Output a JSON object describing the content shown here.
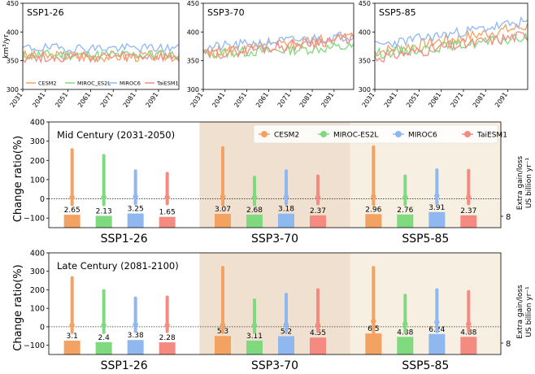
{
  "colors": {
    "CESM2": "#f4a261",
    "MIROC_ES2L": "#7fd97f",
    "MIROC6": "#8fb8f0",
    "TaiESM1": "#f58a80",
    "band_ssp370": "#f0e0cf",
    "band_ssp585": "#f7efe2"
  },
  "chart_data": [
    {
      "type": "line",
      "title": "SSP1-26",
      "ylabel": "km³/yr",
      "ylim": [
        300,
        450
      ],
      "yticks": [
        "300",
        "350",
        "400",
        "450"
      ],
      "xticks": [
        "2031",
        "2041",
        "2051",
        "2061",
        "2071",
        "2081",
        "2091"
      ],
      "xlim": [
        2031,
        2100
      ],
      "legend": "bottom",
      "series": [
        {
          "name": "CESM2",
          "color_key": "CESM2",
          "base": 358,
          "trend": 0,
          "amp": 10,
          "seed": 3
        },
        {
          "name": "MIROC_ES2L",
          "color_key": "MIROC_ES2L",
          "base": 360,
          "trend": 0,
          "amp": 9,
          "seed": 11
        },
        {
          "name": "MIROC6",
          "color_key": "MIROC6",
          "base": 372,
          "trend": 0,
          "amp": 8,
          "seed": 19
        },
        {
          "name": "TaiESM1",
          "color_key": "TaiESM1",
          "base": 356,
          "trend": 0,
          "amp": 9,
          "seed": 27
        }
      ]
    },
    {
      "type": "line",
      "title": "SSP3-70",
      "ylim": [
        300,
        450
      ],
      "yticks": [
        "300",
        "350",
        "400",
        "450"
      ],
      "xticks": [
        "2031",
        "2041",
        "2051",
        "2061",
        "2071",
        "2081",
        "2091"
      ],
      "xlim": [
        2031,
        2100
      ],
      "series": [
        {
          "name": "CESM2",
          "color_key": "CESM2",
          "base": 362,
          "trend": 30,
          "amp": 10,
          "seed": 5
        },
        {
          "name": "MIROC_ES2L",
          "color_key": "MIROC_ES2L",
          "base": 362,
          "trend": 12,
          "amp": 9,
          "seed": 13
        },
        {
          "name": "MIROC6",
          "color_key": "MIROC6",
          "base": 372,
          "trend": 22,
          "amp": 9,
          "seed": 21
        },
        {
          "name": "TaiESM1",
          "color_key": "TaiESM1",
          "base": 360,
          "trend": 30,
          "amp": 10,
          "seed": 29
        }
      ]
    },
    {
      "type": "line",
      "title": "SSP5-85",
      "ylim": [
        300,
        450
      ],
      "yticks": [
        "300",
        "350",
        "400",
        "450"
      ],
      "xticks": [
        "2031",
        "2041",
        "2051",
        "2061",
        "2071",
        "2081",
        "2091"
      ],
      "xlim": [
        2031,
        2100
      ],
      "series": [
        {
          "name": "CESM2",
          "color_key": "CESM2",
          "base": 365,
          "trend": 45,
          "amp": 10,
          "seed": 7
        },
        {
          "name": "MIROC_ES2L",
          "color_key": "MIROC_ES2L",
          "base": 362,
          "trend": 28,
          "amp": 9,
          "seed": 15
        },
        {
          "name": "MIROC6",
          "color_key": "MIROC6",
          "base": 376,
          "trend": 42,
          "amp": 9,
          "seed": 23
        },
        {
          "name": "TaiESM1",
          "color_key": "TaiESM1",
          "base": 355,
          "trend": 40,
          "amp": 10,
          "seed": 31
        }
      ]
    },
    {
      "type": "bar",
      "title": "Mid Century (2031-2050)",
      "ylabel": "Change ratio(%)",
      "ylabel2": "Extra gain/loss",
      "ylabel2_unit": "US billion yr⁻¹",
      "right_tick": "8",
      "ylim": [
        -150,
        400
      ],
      "yticks": [
        -100,
        0,
        100,
        200,
        300,
        400
      ],
      "categories": [
        "SSP1-26",
        "SSP3-70",
        "SSP5-85"
      ],
      "legend": "top-right",
      "models": [
        "CESM2",
        "MIROC-ES2L",
        "MIROC6",
        "TaiESM1"
      ],
      "ranges": [
        [
          [
            -30,
            255
          ],
          [
            -30,
            225
          ],
          [
            -25,
            145
          ],
          [
            -25,
            132
          ]
        ],
        [
          [
            -30,
            265
          ],
          [
            -30,
            112
          ],
          [
            -25,
            145
          ],
          [
            -25,
            118
          ]
        ],
        [
          [
            -30,
            270
          ],
          [
            -30,
            118
          ],
          [
            -25,
            150
          ],
          [
            -25,
            148
          ]
        ]
      ],
      "medians": [
        [
          8,
          8,
          12,
          8
        ],
        [
          12,
          8,
          12,
          8
        ],
        [
          12,
          8,
          15,
          8
        ]
      ],
      "values": [
        [
          "2.65",
          "2.13",
          "3.25",
          "1.65"
        ],
        [
          "3.07",
          "2.68",
          "3.18",
          "2.37"
        ],
        [
          "2.96",
          "2.76",
          "3.91",
          "2.37"
        ]
      ]
    },
    {
      "type": "bar",
      "title": "Late Century (2081-2100)",
      "ylabel": "Change ratio(%)",
      "ylabel2": "Extra gain/loss",
      "ylabel2_unit": "US billion yr⁻¹",
      "right_tick": "8",
      "ylim": [
        -150,
        400
      ],
      "yticks": [
        -100,
        0,
        100,
        200,
        300,
        400
      ],
      "categories": [
        "SSP1-26",
        "SSP3-70",
        "SSP5-85"
      ],
      "ranges": [
        [
          [
            -30,
            265
          ],
          [
            -30,
            195
          ],
          [
            -25,
            155
          ],
          [
            -25,
            160
          ]
        ],
        [
          [
            -30,
            320
          ],
          [
            -30,
            145
          ],
          [
            -25,
            175
          ],
          [
            -25,
            200
          ]
        ],
        [
          [
            -30,
            320
          ],
          [
            -30,
            170
          ],
          [
            -25,
            200
          ],
          [
            -25,
            190
          ]
        ]
      ],
      "medians": [
        [
          8,
          8,
          12,
          8
        ],
        [
          10,
          8,
          12,
          10
        ],
        [
          30,
          15,
          25,
          15
        ]
      ],
      "values": [
        [
          "3.1",
          "2.4",
          "3.38",
          "2.28"
        ],
        [
          "5.3",
          "3.11",
          "5.2",
          "4.55"
        ],
        [
          "6.5",
          "4.88",
          "6.24",
          "4.88"
        ]
      ]
    }
  ]
}
